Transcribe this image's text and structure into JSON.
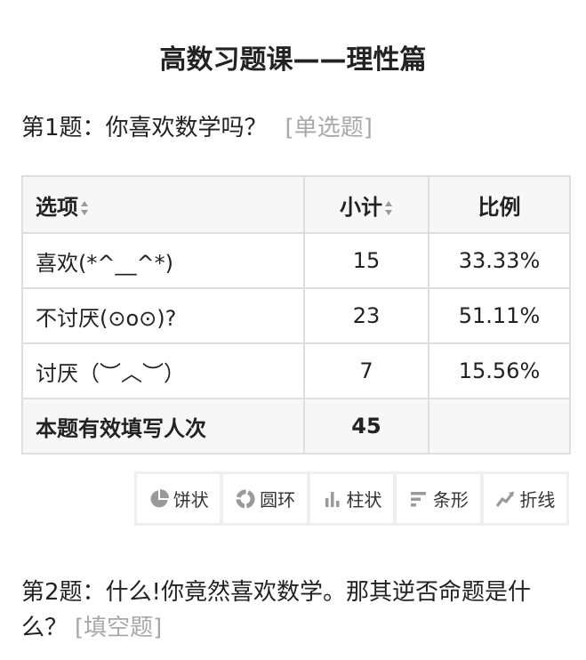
{
  "page": {
    "title": "高数习题课——理性篇"
  },
  "question1": {
    "text": "第1题：你喜欢数学吗？",
    "type": "[单选题]",
    "table": {
      "headers": {
        "option": "选项",
        "count": "小计",
        "percent": "比例"
      },
      "rows": [
        {
          "option": "喜欢(*^__^*)",
          "count": "15",
          "percent": "33.33%"
        },
        {
          "option": "不讨厌(⊙o⊙)?",
          "count": "23",
          "percent": "51.11%"
        },
        {
          "option": "讨厌（︶︿︶）",
          "count": "7",
          "percent": "15.56%"
        }
      ],
      "total": {
        "label": "本题有效填写人次",
        "count": "45"
      }
    },
    "chart_buttons": [
      {
        "label": "饼状",
        "icon": "pie-chart-icon"
      },
      {
        "label": "圆环",
        "icon": "donut-chart-icon"
      },
      {
        "label": "柱状",
        "icon": "bar-chart-icon"
      },
      {
        "label": "条形",
        "icon": "horizontal-bar-icon"
      },
      {
        "label": "折线",
        "icon": "line-chart-icon"
      }
    ]
  },
  "question2": {
    "text": "第2题：什么!你竟然喜欢数学。那其逆否命题是什么？",
    "type": "[填空题]"
  },
  "colors": {
    "icon": "#9a9a9a",
    "border": "#dedede",
    "header_bg": "#f7f7f7",
    "toolbar_bg": "#efefef",
    "muted_text": "#a8a8a8"
  }
}
